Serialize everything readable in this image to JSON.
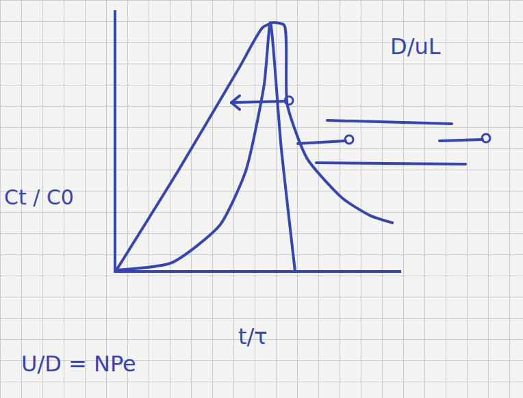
{
  "chart_data": {
    "type": "line",
    "x_label": "t/τ",
    "y_label": "Ct / C0",
    "annotations": [
      "D/uL",
      "U/D = NPe"
    ],
    "color": "#3545b8",
    "grid": true,
    "tick_labels": false,
    "xlim": [
      0,
      1.85
    ],
    "ylim": [
      0,
      1.05
    ],
    "xticks": [],
    "yticks": [],
    "series": [
      {
        "color": "#3545b8",
        "x": [
          0,
          0.4,
          0.8,
          0.95,
          1.02,
          1.09,
          1.11,
          1.24,
          1.47,
          1.65,
          1.8
        ],
        "values": [
          0,
          0.4,
          0.82,
          0.98,
          1.0,
          0.99,
          0.67,
          0.45,
          0.29,
          0.22,
          0.19
        ]
      },
      {
        "color": "#3545b8",
        "x": [
          0,
          0.36,
          0.67,
          0.84,
          0.96,
          1.0,
          1.07,
          1.16
        ],
        "values": [
          0,
          0.03,
          0.18,
          0.4,
          0.75,
          1.0,
          0.5,
          0
        ]
      }
    ]
  }
}
